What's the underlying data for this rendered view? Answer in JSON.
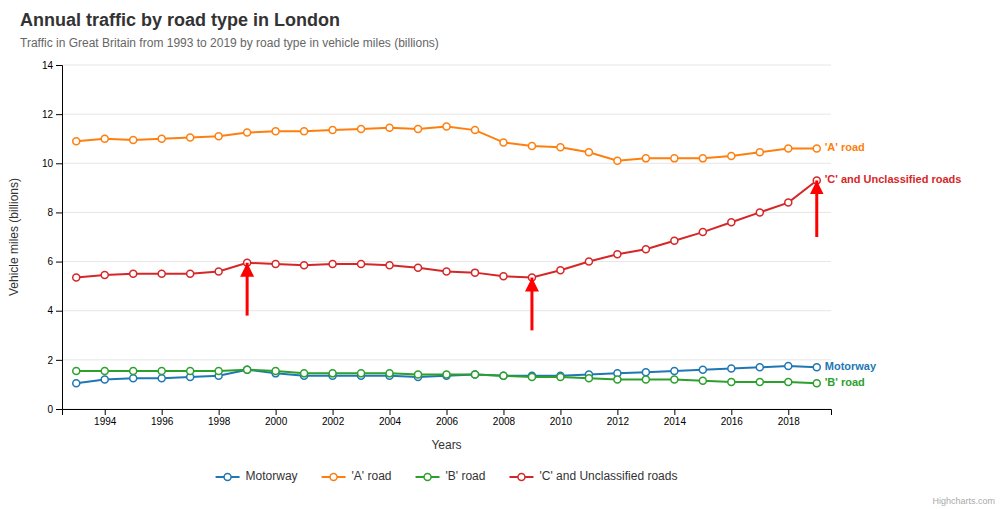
{
  "chart_data": {
    "type": "line",
    "title": "Annual traffic by road type in London",
    "subtitle": "Traffic in Great Britain from 1993 to 2019 by road type in vehicle miles (billions)",
    "xlabel": "Years",
    "ylabel": "Vehicle miles (billions)",
    "x": [
      1993,
      1994,
      1995,
      1996,
      1997,
      1998,
      1999,
      2000,
      2001,
      2002,
      2003,
      2004,
      2005,
      2006,
      2007,
      2008,
      2009,
      2010,
      2011,
      2012,
      2013,
      2014,
      2015,
      2016,
      2017,
      2018,
      2019
    ],
    "series": [
      {
        "name": "Motorway",
        "values": [
          1.05,
          1.2,
          1.25,
          1.25,
          1.3,
          1.35,
          1.6,
          1.45,
          1.35,
          1.35,
          1.35,
          1.35,
          1.3,
          1.35,
          1.4,
          1.35,
          1.35,
          1.35,
          1.4,
          1.45,
          1.5,
          1.55,
          1.6,
          1.65,
          1.7,
          1.75,
          1.7
        ]
      },
      {
        "name": "'A' road",
        "values": [
          10.9,
          11.0,
          10.95,
          11.0,
          11.05,
          11.1,
          11.25,
          11.3,
          11.3,
          11.35,
          11.4,
          11.45,
          11.4,
          11.5,
          11.35,
          10.85,
          10.7,
          10.65,
          10.45,
          10.1,
          10.2,
          10.2,
          10.2,
          10.3,
          10.45,
          10.6,
          10.6
        ]
      },
      {
        "name": "'B' road",
        "values": [
          1.55,
          1.55,
          1.55,
          1.55,
          1.55,
          1.55,
          1.6,
          1.55,
          1.45,
          1.45,
          1.45,
          1.45,
          1.4,
          1.4,
          1.4,
          1.35,
          1.3,
          1.3,
          1.25,
          1.2,
          1.2,
          1.2,
          1.15,
          1.1,
          1.1,
          1.1,
          1.05
        ]
      },
      {
        "name": "'C' and Unclassified roads",
        "values": [
          5.35,
          5.45,
          5.5,
          5.5,
          5.5,
          5.6,
          5.95,
          5.9,
          5.85,
          5.9,
          5.9,
          5.85,
          5.75,
          5.6,
          5.55,
          5.4,
          5.35,
          5.65,
          6.0,
          6.3,
          6.5,
          6.85,
          7.2,
          7.6,
          8.0,
          8.4,
          9.3
        ]
      }
    ],
    "xlim": [
      1992.5,
      2019.5
    ],
    "xticks": [
      1994,
      1996,
      1998,
      2000,
      2002,
      2004,
      2006,
      2008,
      2010,
      2012,
      2014,
      2016,
      2018
    ],
    "ylim": [
      0,
      14
    ],
    "yticks": [
      0,
      2,
      4,
      6,
      8,
      10,
      12,
      14
    ],
    "grid": true,
    "legend": "bottom",
    "marker": "circle",
    "annotations": [
      {
        "type": "arrow",
        "x": 1999,
        "y": 5.95,
        "y_from": 3.8,
        "color": "red"
      },
      {
        "type": "arrow",
        "x": 2009,
        "y": 5.35,
        "y_from": 3.2,
        "color": "red"
      },
      {
        "type": "arrow",
        "x": 2019,
        "y": 9.3,
        "y_from": 7.0,
        "color": "red"
      },
      {
        "type": "text",
        "text": "Highcharts.com"
      }
    ]
  }
}
